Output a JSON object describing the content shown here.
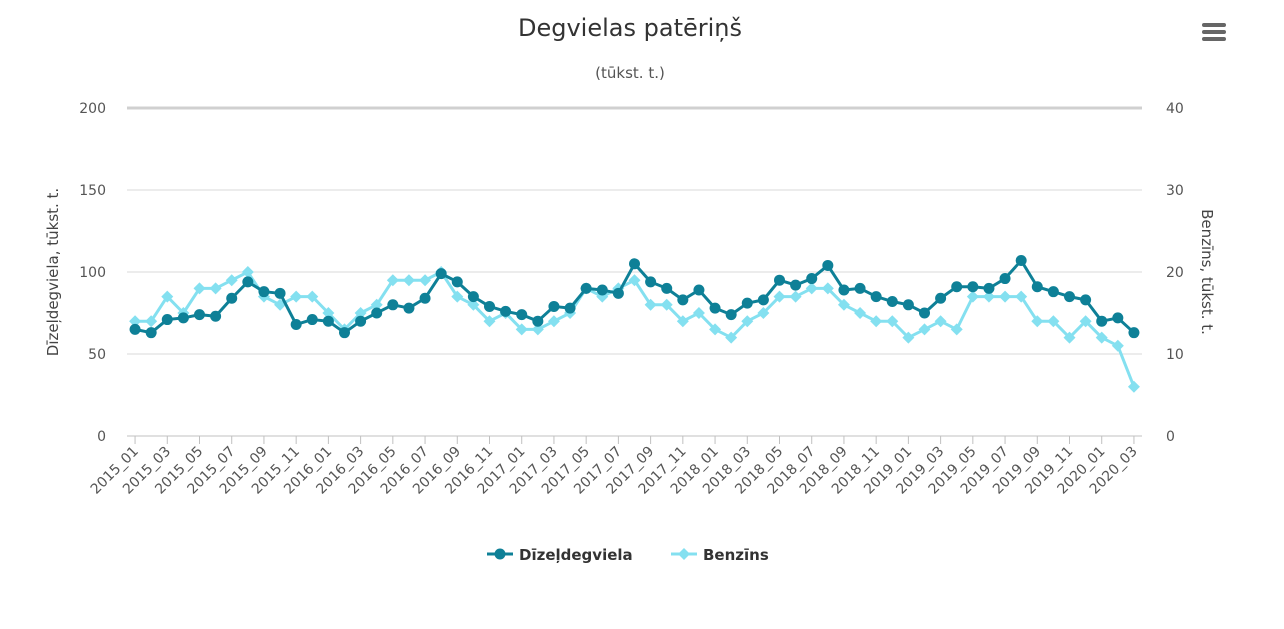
{
  "chart_data": {
    "type": "line",
    "title": "Degvielas patēriņš",
    "subtitle": "(tūkst. t.)",
    "y_left": {
      "label": "Dīzeļdegviela, tūkst. t.",
      "ticks": [
        "200",
        "150",
        "100",
        "50",
        "0"
      ],
      "range": [
        0,
        200
      ]
    },
    "y_right": {
      "label": "Benzīns, tūkst. t.",
      "ticks": [
        "40",
        "30",
        "20",
        "10",
        "0"
      ],
      "range": [
        0,
        40
      ]
    },
    "grid": true,
    "legend_position": "bottom-center",
    "x_tick_labels": [
      "2015_01",
      "2015_03",
      "2015_05",
      "2015_07",
      "2015_09",
      "2015_11",
      "2016_01",
      "2016_03",
      "2016_05",
      "2016_07",
      "2016_09",
      "2016_11",
      "2017_01",
      "2017_03",
      "2017_05",
      "2017_07",
      "2017_09",
      "2017_11",
      "2018_01",
      "2018_03",
      "2018_05",
      "2018_07",
      "2018_09",
      "2018_11",
      "2019_01",
      "2019_03",
      "2019_05",
      "2019_07",
      "2019_09",
      "2019_11",
      "2020_01",
      "2020_03"
    ],
    "categories": [
      "2015_01",
      "2015_02",
      "2015_03",
      "2015_04",
      "2015_05",
      "2015_06",
      "2015_07",
      "2015_08",
      "2015_09",
      "2015_10",
      "2015_11",
      "2015_12",
      "2016_01",
      "2016_02",
      "2016_03",
      "2016_04",
      "2016_05",
      "2016_06",
      "2016_07",
      "2016_08",
      "2016_09",
      "2016_10",
      "2016_11",
      "2016_12",
      "2017_01",
      "2017_02",
      "2017_03",
      "2017_04",
      "2017_05",
      "2017_06",
      "2017_07",
      "2017_08",
      "2017_09",
      "2017_10",
      "2017_11",
      "2017_12",
      "2018_01",
      "2018_02",
      "2018_03",
      "2018_04",
      "2018_05",
      "2018_06",
      "2018_07",
      "2018_08",
      "2018_09",
      "2018_10",
      "2018_11",
      "2018_12",
      "2019_01",
      "2019_02",
      "2019_03",
      "2019_04",
      "2019_05",
      "2019_06",
      "2019_07",
      "2019_08",
      "2019_09",
      "2019_10",
      "2019_11",
      "2019_12",
      "2020_01",
      "2020_02",
      "2020_03"
    ],
    "series": [
      {
        "name": "Dīzeļdegviela",
        "axis": "left",
        "color": "#0e8097",
        "marker": "circle",
        "values": [
          65,
          63,
          71,
          72,
          74,
          73,
          84,
          94,
          88,
          87,
          68,
          71,
          70,
          63,
          70,
          75,
          80,
          78,
          84,
          99,
          94,
          85,
          79,
          76,
          74,
          70,
          79,
          78,
          90,
          89,
          87,
          105,
          94,
          90,
          83,
          89,
          78,
          74,
          81,
          83,
          95,
          92,
          96,
          104,
          89,
          90,
          85,
          82,
          80,
          75,
          84,
          91,
          91,
          90,
          96,
          107,
          91,
          88,
          85,
          83,
          70,
          72,
          63
        ]
      },
      {
        "name": "Benzīns",
        "axis": "right",
        "color": "#84e0f0",
        "marker": "diamond",
        "values": [
          14,
          14,
          17,
          15,
          18,
          18,
          19,
          20,
          17,
          16,
          17,
          17,
          15,
          13,
          15,
          16,
          19,
          19,
          19,
          20,
          17,
          16,
          14,
          15,
          13,
          13,
          14,
          15,
          18,
          17,
          18,
          19,
          16,
          16,
          14,
          15,
          13,
          12,
          14,
          15,
          17,
          17,
          18,
          18,
          16,
          15,
          14,
          14,
          12,
          13,
          14,
          13,
          17,
          17,
          17,
          17,
          14,
          14,
          12,
          14,
          12,
          11,
          6
        ]
      }
    ]
  },
  "menu": {
    "icon": "hamburger-menu-icon"
  }
}
